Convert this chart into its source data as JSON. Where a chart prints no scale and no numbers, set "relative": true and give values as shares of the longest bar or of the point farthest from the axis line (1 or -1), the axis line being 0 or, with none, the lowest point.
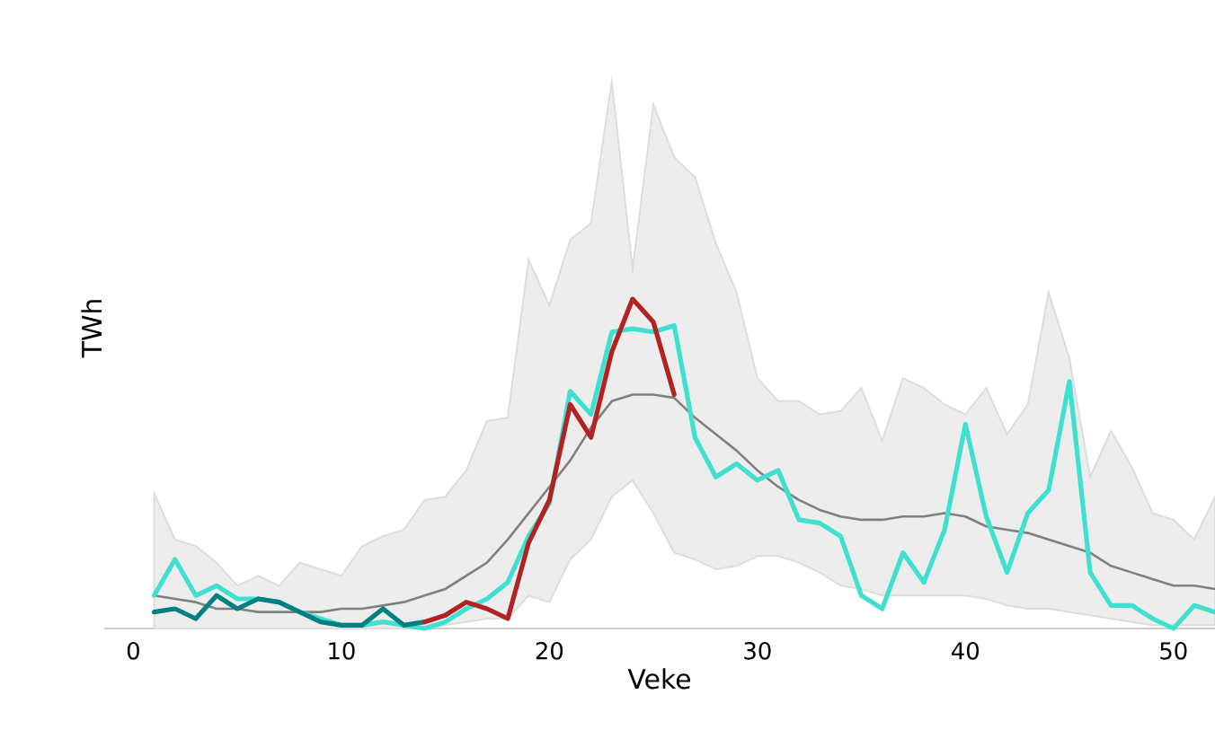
{
  "chart_data": {
    "type": "line",
    "relative": true,
    "xlabel": "Veke",
    "ylabel": "TWh",
    "xlim": [
      -1.4,
      52
    ],
    "xticks": [
      0,
      10,
      20,
      30,
      40,
      50
    ],
    "grid": false,
    "marker": "none",
    "line_style": "solid",
    "series": [
      {
        "color": "#808080",
        "x": [
          1,
          2,
          3,
          4,
          5,
          6,
          7,
          8,
          9,
          10,
          11,
          12,
          13,
          14,
          15,
          16,
          17,
          18,
          19,
          20,
          21,
          22,
          23,
          24,
          25,
          26,
          27,
          28,
          29,
          30,
          31,
          32,
          33,
          34,
          35,
          36,
          37,
          38,
          39,
          40,
          41,
          42,
          43,
          44,
          45,
          46,
          47,
          48,
          49,
          50,
          51,
          52
        ],
        "values": [
          0.1,
          0.09,
          0.08,
          0.06,
          0.06,
          0.05,
          0.05,
          0.05,
          0.05,
          0.06,
          0.06,
          0.07,
          0.08,
          0.1,
          0.12,
          0.16,
          0.2,
          0.27,
          0.35,
          0.43,
          0.51,
          0.61,
          0.69,
          0.71,
          0.71,
          0.7,
          0.64,
          0.59,
          0.54,
          0.48,
          0.43,
          0.39,
          0.36,
          0.34,
          0.33,
          0.33,
          0.34,
          0.34,
          0.35,
          0.34,
          0.31,
          0.3,
          0.29,
          0.27,
          0.25,
          0.23,
          0.19,
          0.17,
          0.15,
          0.13,
          0.13,
          0.12
        ],
        "lower": [
          0,
          0,
          0,
          0,
          0,
          0,
          0,
          0,
          0,
          0,
          0,
          0,
          0,
          0,
          0.01,
          0.02,
          0.03,
          0.03,
          0.1,
          0.08,
          0.21,
          0.27,
          0.4,
          0.45,
          0.35,
          0.23,
          0.21,
          0.18,
          0.19,
          0.22,
          0.22,
          0.2,
          0.17,
          0.13,
          0.12,
          0.1,
          0.1,
          0.1,
          0.1,
          0.1,
          0.09,
          0.07,
          0.06,
          0.06,
          0.05,
          0.04,
          0.03,
          0.02,
          0.01,
          0.01,
          0.01,
          0.01
        ],
        "upper": [
          0.41,
          0.27,
          0.25,
          0.2,
          0.13,
          0.16,
          0.13,
          0.2,
          0.18,
          0.16,
          0.25,
          0.28,
          0.3,
          0.39,
          0.4,
          0.48,
          0.63,
          0.64,
          1.12,
          0.98,
          1.18,
          1.23,
          1.66,
          1.09,
          1.59,
          1.43,
          1.37,
          1.17,
          1.02,
          0.76,
          0.69,
          0.69,
          0.65,
          0.66,
          0.73,
          0.57,
          0.76,
          0.73,
          0.68,
          0.65,
          0.73,
          0.59,
          0.68,
          1.02,
          0.82,
          0.46,
          0.6,
          0.49,
          0.35,
          0.33,
          0.27,
          0.4
        ]
      },
      {
        "color": "#40e0d0",
        "x": [
          1,
          2,
          3,
          4,
          5,
          6,
          7,
          8,
          9,
          10,
          11,
          12,
          13,
          14,
          15,
          16,
          17,
          18,
          19,
          20,
          21,
          22,
          23,
          24,
          25,
          26,
          27,
          28,
          29,
          30,
          31,
          32,
          33,
          34,
          35,
          36,
          37,
          38,
          39,
          40,
          41,
          42,
          43,
          44,
          45,
          46,
          47,
          48,
          49,
          50,
          51,
          52
        ],
        "values": [
          0.1,
          0.21,
          0.1,
          0.13,
          0.09,
          0.09,
          0.08,
          0.05,
          0.03,
          0.01,
          0.01,
          0.02,
          0.01,
          0,
          0.02,
          0.06,
          0.09,
          0.14,
          0.28,
          0.38,
          0.72,
          0.65,
          0.9,
          0.91,
          0.9,
          0.92,
          0.58,
          0.46,
          0.5,
          0.45,
          0.48,
          0.33,
          0.32,
          0.28,
          0.1,
          0.06,
          0.23,
          0.14,
          0.3,
          0.62,
          0.34,
          0.17,
          0.35,
          0.42,
          0.75,
          0.17,
          0.07,
          0.07,
          0.03,
          0,
          0.07,
          0.05
        ]
      },
      {
        "color": "#008080",
        "x": [
          1,
          2,
          3,
          4,
          5,
          6,
          7,
          8,
          9,
          10,
          11,
          12,
          13,
          14
        ],
        "values": [
          0.05,
          0.06,
          0.03,
          0.1,
          0.06,
          0.09,
          0.08,
          0.05,
          0.02,
          0.01,
          0.01,
          0.06,
          0.01,
          0.02
        ]
      },
      {
        "color": "#b22222",
        "x": [
          14,
          15,
          16,
          17,
          18,
          19,
          20,
          21,
          22,
          23,
          24,
          25,
          26
        ],
        "values": [
          0.02,
          0.04,
          0.08,
          0.06,
          0.03,
          0.26,
          0.39,
          0.68,
          0.58,
          0.84,
          1,
          0.93,
          0.71
        ]
      }
    ]
  }
}
